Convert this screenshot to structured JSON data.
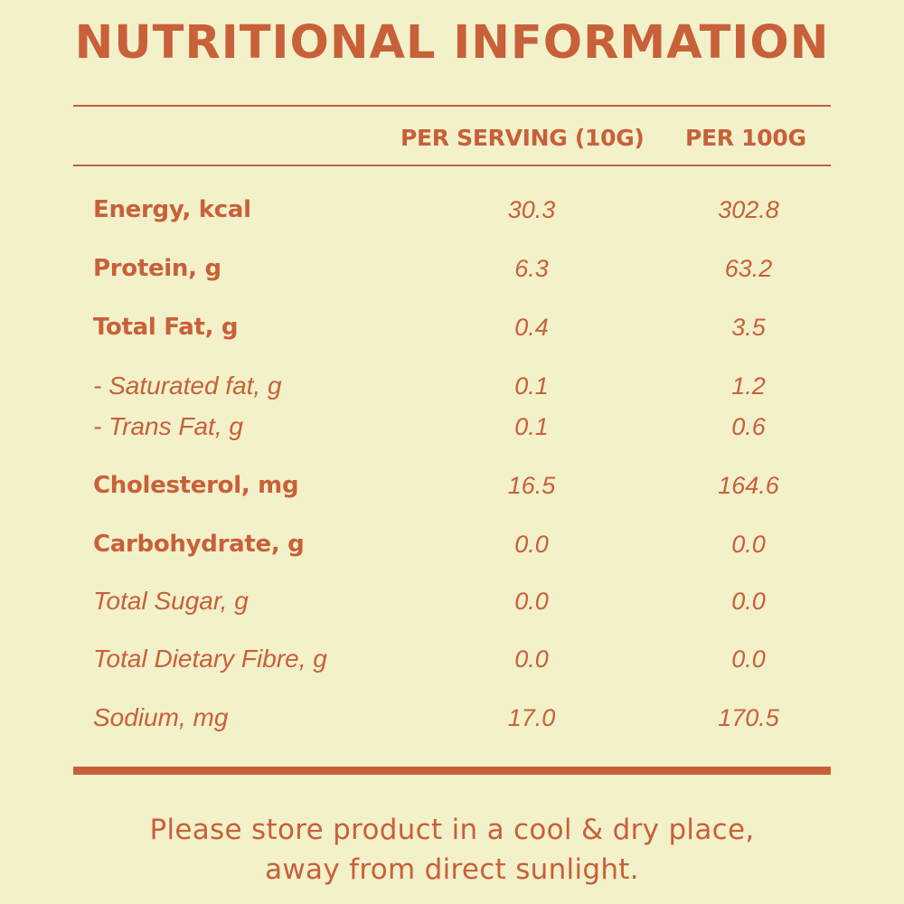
{
  "title": "NUTRITIONAL INFORMATION",
  "columns": {
    "per_serving": "PER SERVING (10G)",
    "per_100g": "PER 100G"
  },
  "rows": [
    {
      "label": "Energy, kcal",
      "per_serving": "30.3",
      "per_100g": "302.8"
    },
    {
      "label": "Protein, g",
      "per_serving": "6.3",
      "per_100g": "63.2"
    },
    {
      "label": "Total Fat, g",
      "per_serving": "0.4",
      "per_100g": "3.5"
    },
    {
      "label": "- Saturated fat, g",
      "per_serving": "0.1",
      "per_100g": "1.2"
    },
    {
      "label": "- Trans Fat, g",
      "per_serving": "0.1",
      "per_100g": "0.6"
    },
    {
      "label": "Cholesterol, mg",
      "per_serving": "16.5",
      "per_100g": "164.6"
    },
    {
      "label": "Carbohydrate, g",
      "per_serving": "0.0",
      "per_100g": "0.0"
    },
    {
      "label": "Total Sugar, g",
      "per_serving": "0.0",
      "per_100g": "0.0"
    },
    {
      "label": "Total Dietary Fibre, g",
      "per_serving": "0.0",
      "per_100g": "0.0"
    },
    {
      "label": "Sodium, mg",
      "per_serving": "17.0",
      "per_100g": "170.5"
    }
  ],
  "footer": {
    "line1": "Please store product in a cool & dry place,",
    "line2": "away from direct sunlight."
  },
  "colors": {
    "background": "#f3f1c9",
    "accent": "#c8603a"
  }
}
